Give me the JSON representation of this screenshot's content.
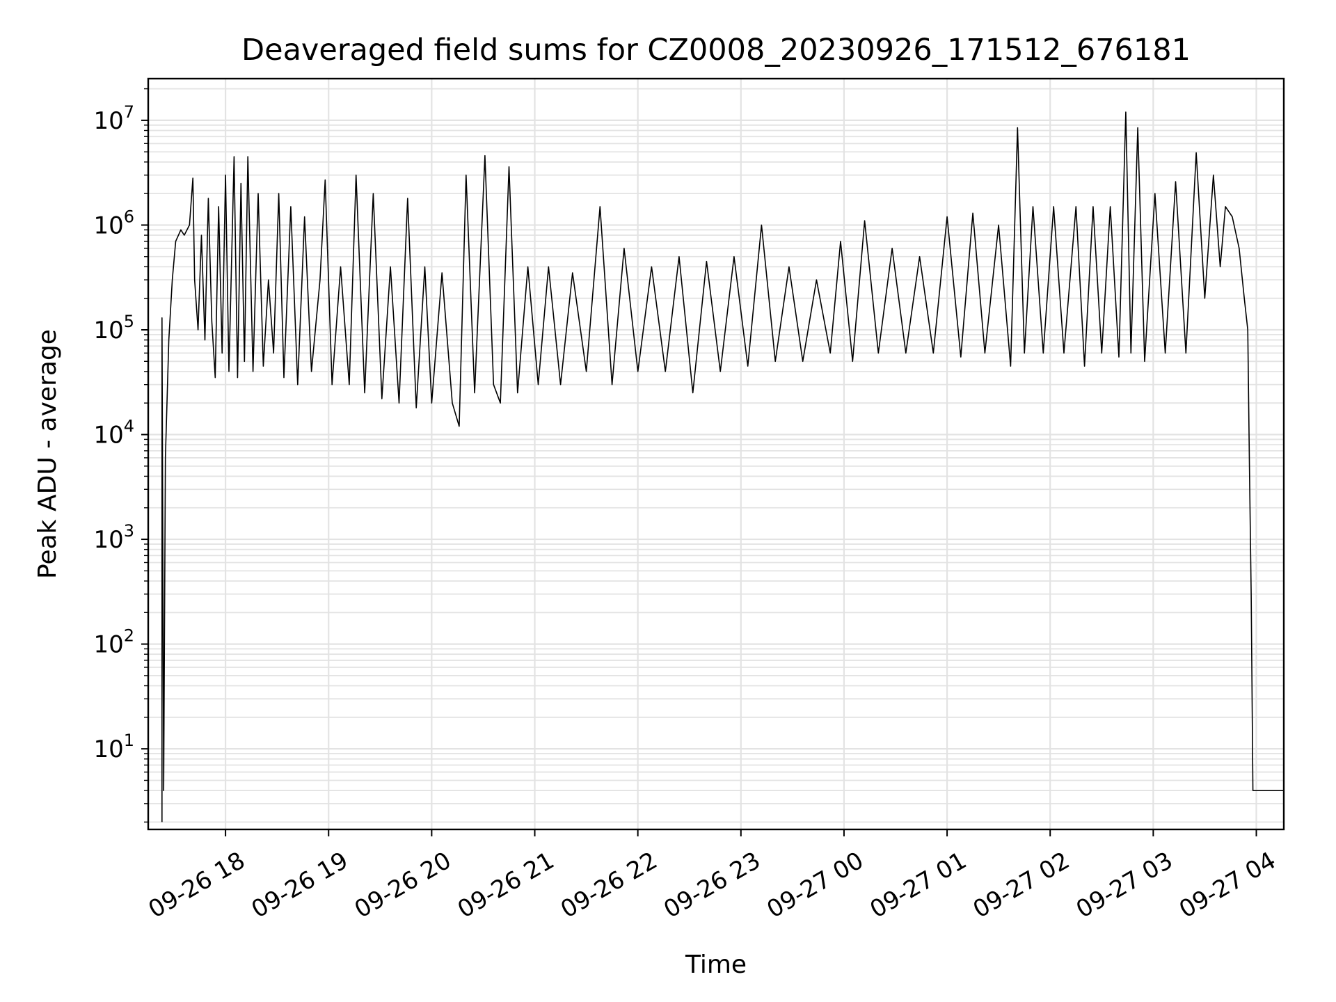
{
  "chart_data": {
    "type": "line",
    "title": "Deaveraged field sums for CZ0008_20230926_171512_676181",
    "xlabel": "Time",
    "ylabel": "Peak ADU - average",
    "yscale": "log",
    "ylim": [
      1.7,
      25000000
    ],
    "xlim": [
      "2023-09-26 17:15",
      "2023-09-27 04:16"
    ],
    "grid": true,
    "line_color": "#000000",
    "x_ticks": [
      {
        "t": "2023-09-26 18:00",
        "label": "09-26 18"
      },
      {
        "t": "2023-09-26 19:00",
        "label": "09-26 19"
      },
      {
        "t": "2023-09-26 20:00",
        "label": "09-26 20"
      },
      {
        "t": "2023-09-26 21:00",
        "label": "09-26 21"
      },
      {
        "t": "2023-09-26 22:00",
        "label": "09-26 22"
      },
      {
        "t": "2023-09-26 23:00",
        "label": "09-26 23"
      },
      {
        "t": "2023-09-27 00:00",
        "label": "09-27 00"
      },
      {
        "t": "2023-09-27 01:00",
        "label": "09-27 01"
      },
      {
        "t": "2023-09-27 02:00",
        "label": "09-27 02"
      },
      {
        "t": "2023-09-27 03:00",
        "label": "09-27 03"
      },
      {
        "t": "2023-09-27 04:00",
        "label": "09-27 04"
      }
    ],
    "y_ticks": [
      {
        "value": 10,
        "base": "10",
        "exp": "1"
      },
      {
        "value": 100,
        "base": "10",
        "exp": "2"
      },
      {
        "value": 1000,
        "base": "10",
        "exp": "3"
      },
      {
        "value": 10000,
        "base": "10",
        "exp": "4"
      },
      {
        "value": 100000,
        "base": "10",
        "exp": "5"
      },
      {
        "value": 1000000,
        "base": "10",
        "exp": "6"
      },
      {
        "value": 10000000,
        "base": "10",
        "exp": "7"
      }
    ],
    "series": [
      {
        "points": [
          [
            "2023-09-26 17:23",
            2
          ],
          [
            "2023-09-26 17:23",
            130000
          ],
          [
            "2023-09-26 17:24",
            4
          ],
          [
            "2023-09-26 17:25",
            6000
          ],
          [
            "2023-09-26 17:27",
            80000
          ],
          [
            "2023-09-26 17:29",
            300000
          ],
          [
            "2023-09-26 17:31",
            700000
          ],
          [
            "2023-09-26 17:34",
            900000
          ],
          [
            "2023-09-26 17:36",
            800000
          ],
          [
            "2023-09-26 17:39",
            1000000
          ],
          [
            "2023-09-26 17:41",
            2800000
          ],
          [
            "2023-09-26 17:42",
            300000
          ],
          [
            "2023-09-26 17:44",
            100000
          ],
          [
            "2023-09-26 17:46",
            800000
          ],
          [
            "2023-09-26 17:48",
            80000
          ],
          [
            "2023-09-26 17:50",
            1800000
          ],
          [
            "2023-09-26 17:52",
            120000
          ],
          [
            "2023-09-26 17:54",
            35000
          ],
          [
            "2023-09-26 17:56",
            1500000
          ],
          [
            "2023-09-26 17:58",
            60000
          ],
          [
            "2023-09-26 18:00",
            3000000
          ],
          [
            "2023-09-26 18:02",
            40000
          ],
          [
            "2023-09-26 18:05",
            4500000
          ],
          [
            "2023-09-26 18:07",
            35000
          ],
          [
            "2023-09-26 18:09",
            2500000
          ],
          [
            "2023-09-26 18:11",
            50000
          ],
          [
            "2023-09-26 18:13",
            4500000
          ],
          [
            "2023-09-26 18:16",
            40000
          ],
          [
            "2023-09-26 18:19",
            2000000
          ],
          [
            "2023-09-26 18:22",
            45000
          ],
          [
            "2023-09-26 18:25",
            300000
          ],
          [
            "2023-09-26 18:28",
            60000
          ],
          [
            "2023-09-26 18:31",
            2000000
          ],
          [
            "2023-09-26 18:34",
            35000
          ],
          [
            "2023-09-26 18:38",
            1500000
          ],
          [
            "2023-09-26 18:42",
            30000
          ],
          [
            "2023-09-26 18:46",
            1200000
          ],
          [
            "2023-09-26 18:50",
            40000
          ],
          [
            "2023-09-26 18:55",
            300000
          ],
          [
            "2023-09-26 18:58",
            2700000
          ],
          [
            "2023-09-26 19:02",
            30000
          ],
          [
            "2023-09-26 19:07",
            400000
          ],
          [
            "2023-09-26 19:12",
            30000
          ],
          [
            "2023-09-26 19:16",
            3000000
          ],
          [
            "2023-09-26 19:21",
            25000
          ],
          [
            "2023-09-26 19:26",
            2000000
          ],
          [
            "2023-09-26 19:31",
            22000
          ],
          [
            "2023-09-26 19:36",
            400000
          ],
          [
            "2023-09-26 19:41",
            20000
          ],
          [
            "2023-09-26 19:46",
            1800000
          ],
          [
            "2023-09-26 19:51",
            18000
          ],
          [
            "2023-09-26 19:56",
            400000
          ],
          [
            "2023-09-26 20:00",
            20000
          ],
          [
            "2023-09-26 20:06",
            350000
          ],
          [
            "2023-09-26 20:12",
            20000
          ],
          [
            "2023-09-26 20:16",
            12000
          ],
          [
            "2023-09-26 20:20",
            3000000
          ],
          [
            "2023-09-26 20:25",
            25000
          ],
          [
            "2023-09-26 20:31",
            4600000
          ],
          [
            "2023-09-26 20:36",
            30000
          ],
          [
            "2023-09-26 20:40",
            20000
          ],
          [
            "2023-09-26 20:45",
            3600000
          ],
          [
            "2023-09-26 20:50",
            25000
          ],
          [
            "2023-09-26 20:56",
            400000
          ],
          [
            "2023-09-26 21:02",
            30000
          ],
          [
            "2023-09-26 21:08",
            400000
          ],
          [
            "2023-09-26 21:15",
            30000
          ],
          [
            "2023-09-26 21:22",
            350000
          ],
          [
            "2023-09-26 21:30",
            40000
          ],
          [
            "2023-09-26 21:38",
            1500000
          ],
          [
            "2023-09-26 21:45",
            30000
          ],
          [
            "2023-09-26 21:52",
            600000
          ],
          [
            "2023-09-26 22:00",
            40000
          ],
          [
            "2023-09-26 22:08",
            400000
          ],
          [
            "2023-09-26 22:16",
            40000
          ],
          [
            "2023-09-26 22:24",
            500000
          ],
          [
            "2023-09-26 22:32",
            25000
          ],
          [
            "2023-09-26 22:40",
            450000
          ],
          [
            "2023-09-26 22:48",
            40000
          ],
          [
            "2023-09-26 22:56",
            500000
          ],
          [
            "2023-09-26 23:04",
            45000
          ],
          [
            "2023-09-26 23:12",
            1000000
          ],
          [
            "2023-09-26 23:20",
            50000
          ],
          [
            "2023-09-26 23:28",
            400000
          ],
          [
            "2023-09-26 23:36",
            50000
          ],
          [
            "2023-09-26 23:44",
            300000
          ],
          [
            "2023-09-26 23:52",
            60000
          ],
          [
            "2023-09-26 23:58",
            700000
          ],
          [
            "2023-09-27 00:05",
            50000
          ],
          [
            "2023-09-27 00:12",
            1100000
          ],
          [
            "2023-09-27 00:20",
            60000
          ],
          [
            "2023-09-27 00:28",
            600000
          ],
          [
            "2023-09-27 00:36",
            60000
          ],
          [
            "2023-09-27 00:44",
            500000
          ],
          [
            "2023-09-27 00:52",
            60000
          ],
          [
            "2023-09-27 01:00",
            1200000
          ],
          [
            "2023-09-27 01:08",
            55000
          ],
          [
            "2023-09-27 01:15",
            1300000
          ],
          [
            "2023-09-27 01:22",
            60000
          ],
          [
            "2023-09-27 01:30",
            1000000
          ],
          [
            "2023-09-27 01:37",
            45000
          ],
          [
            "2023-09-27 01:41",
            8500000
          ],
          [
            "2023-09-27 01:45",
            60000
          ],
          [
            "2023-09-27 01:50",
            1500000
          ],
          [
            "2023-09-27 01:56",
            60000
          ],
          [
            "2023-09-27 02:02",
            1500000
          ],
          [
            "2023-09-27 02:08",
            60000
          ],
          [
            "2023-09-27 02:15",
            1500000
          ],
          [
            "2023-09-27 02:20",
            45000
          ],
          [
            "2023-09-27 02:25",
            1500000
          ],
          [
            "2023-09-27 02:30",
            60000
          ],
          [
            "2023-09-27 02:35",
            1500000
          ],
          [
            "2023-09-27 02:40",
            55000
          ],
          [
            "2023-09-27 02:44",
            12000000
          ],
          [
            "2023-09-27 02:47",
            60000
          ],
          [
            "2023-09-27 02:51",
            8500000
          ],
          [
            "2023-09-27 02:55",
            50000
          ],
          [
            "2023-09-27 03:01",
            2000000
          ],
          [
            "2023-09-27 03:07",
            60000
          ],
          [
            "2023-09-27 03:13",
            2600000
          ],
          [
            "2023-09-27 03:19",
            60000
          ],
          [
            "2023-09-27 03:25",
            4900000
          ],
          [
            "2023-09-27 03:30",
            200000
          ],
          [
            "2023-09-27 03:35",
            3000000
          ],
          [
            "2023-09-27 03:39",
            400000
          ],
          [
            "2023-09-27 03:42",
            1500000
          ],
          [
            "2023-09-27 03:46",
            1200000
          ],
          [
            "2023-09-27 03:50",
            600000
          ],
          [
            "2023-09-27 03:53",
            200000
          ],
          [
            "2023-09-27 03:55",
            100000
          ],
          [
            "2023-09-27 03:56",
            5000
          ],
          [
            "2023-09-27 03:57",
            300
          ],
          [
            "2023-09-27 03:58",
            4
          ],
          [
            "2023-09-27 04:16",
            4
          ]
        ]
      }
    ]
  }
}
